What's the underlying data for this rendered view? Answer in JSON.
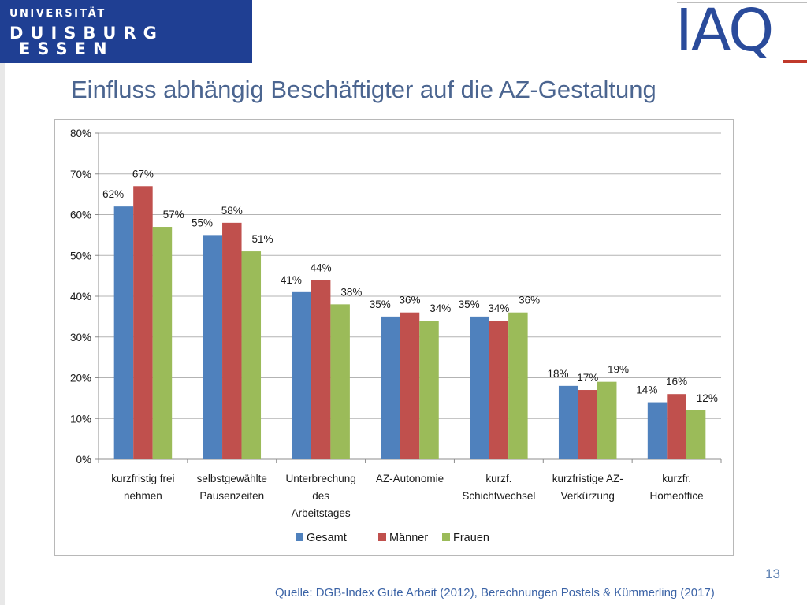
{
  "header": {
    "university": [
      "UNIVERSITÄT",
      "DUISBURG",
      "ESSEN"
    ],
    "institute_logo": "IAQ"
  },
  "slide": {
    "title": "Einfluss abhängig Beschäftigter auf die AZ-Gestaltung",
    "page_number": "13",
    "source": "Quelle: DGB-Index Gute Arbeit (2012), Berechnungen Postels & Kümmerling (2017)"
  },
  "colors": {
    "header_bg": "#1f3f93",
    "title": "#4b6590",
    "gesamt": "#4f81bd",
    "maenner": "#c0504d",
    "frauen": "#9bbb59"
  },
  "chart_data": {
    "type": "bar",
    "categories": [
      [
        "kurzfristig frei",
        "nehmen"
      ],
      [
        "selbstgewählte",
        "Pausenzeiten"
      ],
      [
        "Unterbrechung",
        "des",
        "Arbeitstages"
      ],
      [
        "AZ-Autonomie"
      ],
      [
        "kurzf.",
        "Schichtwechsel"
      ],
      [
        "kurzfristige AZ-",
        "Verkürzung"
      ],
      [
        "kurzfr.",
        "Homeoffice"
      ]
    ],
    "series": [
      {
        "name": "Gesamt",
        "color": "#4f81bd",
        "values": [
          62,
          55,
          41,
          35,
          35,
          18,
          14
        ]
      },
      {
        "name": "Männer",
        "color": "#c0504d",
        "values": [
          67,
          58,
          44,
          36,
          34,
          17,
          16
        ]
      },
      {
        "name": "Frauen",
        "color": "#9bbb59",
        "values": [
          57,
          51,
          38,
          34,
          36,
          19,
          12
        ]
      }
    ],
    "value_labels": [
      [
        "62%",
        "55%",
        "41%",
        "35%",
        "35%",
        "18%",
        "14%"
      ],
      [
        "67%",
        "58%",
        "44%",
        "36%",
        "34%",
        "17%",
        "16%"
      ],
      [
        "57%",
        "51%",
        "38%",
        "34%",
        "36%",
        "19%",
        "12%"
      ]
    ],
    "yticks": [
      0,
      10,
      20,
      30,
      40,
      50,
      60,
      70,
      80
    ],
    "ytick_labels": [
      "0%",
      "10%",
      "20%",
      "30%",
      "40%",
      "50%",
      "60%",
      "70%",
      "80%"
    ],
    "ylim": [
      0,
      80
    ],
    "grid": true,
    "legend_position": "bottom"
  }
}
